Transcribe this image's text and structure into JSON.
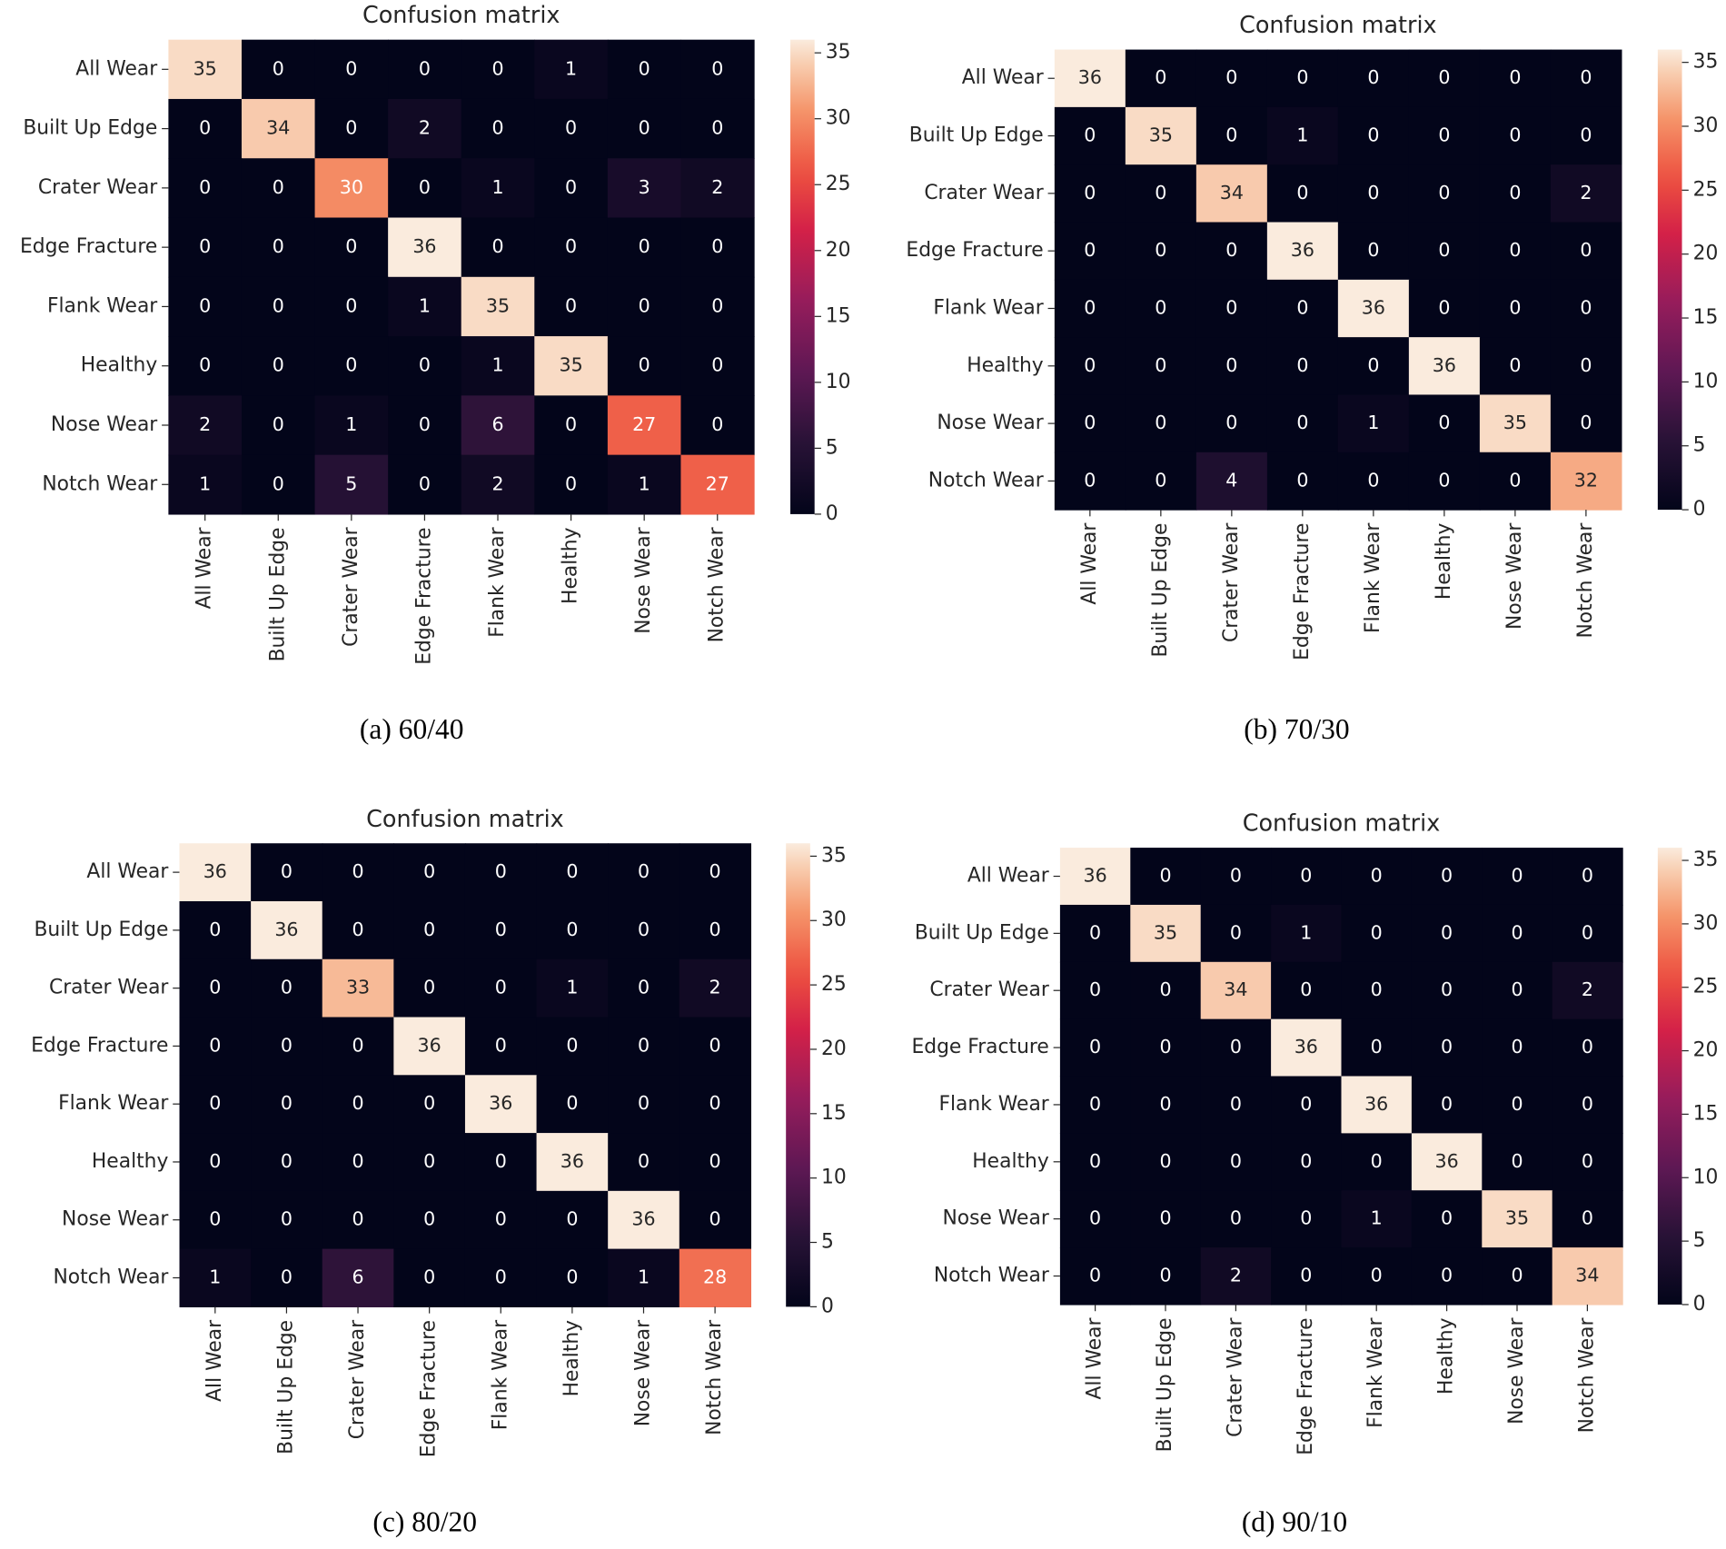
{
  "chart_data": [
    {
      "type": "heatmap",
      "title": "Confusion matrix",
      "caption": "(a) 60/40",
      "colormap": "rocket",
      "rows": [
        "All Wear",
        "Built Up Edge",
        "Crater Wear",
        "Edge Fracture",
        "Flank Wear",
        "Healthy",
        "Nose Wear",
        "Notch Wear"
      ],
      "columns": [
        "All Wear",
        "Built Up Edge",
        "Crater Wear",
        "Edge Fracture",
        "Flank Wear",
        "Healthy",
        "Nose Wear",
        "Notch Wear"
      ],
      "values": [
        [
          35,
          0,
          0,
          0,
          0,
          1,
          0,
          0
        ],
        [
          0,
          34,
          0,
          2,
          0,
          0,
          0,
          0
        ],
        [
          0,
          0,
          30,
          0,
          1,
          0,
          3,
          2
        ],
        [
          0,
          0,
          0,
          36,
          0,
          0,
          0,
          0
        ],
        [
          0,
          0,
          0,
          1,
          35,
          0,
          0,
          0
        ],
        [
          0,
          0,
          0,
          0,
          1,
          35,
          0,
          0
        ],
        [
          2,
          0,
          1,
          0,
          6,
          0,
          27,
          0
        ],
        [
          1,
          0,
          5,
          0,
          2,
          0,
          1,
          27
        ]
      ],
      "zlim": [
        0,
        36
      ],
      "zticks": [
        0,
        5,
        10,
        15,
        20,
        25,
        30,
        35
      ]
    },
    {
      "type": "heatmap",
      "title": "Confusion matrix",
      "caption": "(b) 70/30",
      "colormap": "rocket",
      "rows": [
        "All Wear",
        "Built Up Edge",
        "Crater Wear",
        "Edge Fracture",
        "Flank Wear",
        "Healthy",
        "Nose Wear",
        "Notch Wear"
      ],
      "columns": [
        "All Wear",
        "Built Up Edge",
        "Crater Wear",
        "Edge Fracture",
        "Flank Wear",
        "Healthy",
        "Nose Wear",
        "Notch Wear"
      ],
      "values": [
        [
          36,
          0,
          0,
          0,
          0,
          0,
          0,
          0
        ],
        [
          0,
          35,
          0,
          1,
          0,
          0,
          0,
          0
        ],
        [
          0,
          0,
          34,
          0,
          0,
          0,
          0,
          2
        ],
        [
          0,
          0,
          0,
          36,
          0,
          0,
          0,
          0
        ],
        [
          0,
          0,
          0,
          0,
          36,
          0,
          0,
          0
        ],
        [
          0,
          0,
          0,
          0,
          0,
          36,
          0,
          0
        ],
        [
          0,
          0,
          0,
          0,
          1,
          0,
          35,
          0
        ],
        [
          0,
          0,
          4,
          0,
          0,
          0,
          0,
          32
        ]
      ],
      "zlim": [
        0,
        36
      ],
      "zticks": [
        0,
        5,
        10,
        15,
        20,
        25,
        30,
        35
      ]
    },
    {
      "type": "heatmap",
      "title": "Confusion matrix",
      "caption": "(c) 80/20",
      "colormap": "rocket",
      "rows": [
        "All Wear",
        "Built Up Edge",
        "Crater Wear",
        "Edge Fracture",
        "Flank Wear",
        "Healthy",
        "Nose Wear",
        "Notch Wear"
      ],
      "columns": [
        "All Wear",
        "Built Up Edge",
        "Crater Wear",
        "Edge Fracture",
        "Flank Wear",
        "Healthy",
        "Nose Wear",
        "Notch Wear"
      ],
      "values": [
        [
          36,
          0,
          0,
          0,
          0,
          0,
          0,
          0
        ],
        [
          0,
          36,
          0,
          0,
          0,
          0,
          0,
          0
        ],
        [
          0,
          0,
          33,
          0,
          0,
          1,
          0,
          2
        ],
        [
          0,
          0,
          0,
          36,
          0,
          0,
          0,
          0
        ],
        [
          0,
          0,
          0,
          0,
          36,
          0,
          0,
          0
        ],
        [
          0,
          0,
          0,
          0,
          0,
          36,
          0,
          0
        ],
        [
          0,
          0,
          0,
          0,
          0,
          0,
          36,
          0
        ],
        [
          1,
          0,
          6,
          0,
          0,
          0,
          1,
          28
        ]
      ],
      "zlim": [
        0,
        36
      ],
      "zticks": [
        0,
        5,
        10,
        15,
        20,
        25,
        30,
        35
      ]
    },
    {
      "type": "heatmap",
      "title": "Confusion matrix",
      "caption": "(d) 90/10",
      "colormap": "rocket",
      "rows": [
        "All Wear",
        "Built Up Edge",
        "Crater Wear",
        "Edge Fracture",
        "Flank Wear",
        "Healthy",
        "Nose Wear",
        "Notch Wear"
      ],
      "columns": [
        "All Wear",
        "Built Up Edge",
        "Crater Wear",
        "Edge Fracture",
        "Flank Wear",
        "Healthy",
        "Nose Wear",
        "Notch Wear"
      ],
      "values": [
        [
          36,
          0,
          0,
          0,
          0,
          0,
          0,
          0
        ],
        [
          0,
          35,
          0,
          1,
          0,
          0,
          0,
          0
        ],
        [
          0,
          0,
          34,
          0,
          0,
          0,
          0,
          2
        ],
        [
          0,
          0,
          0,
          36,
          0,
          0,
          0,
          0
        ],
        [
          0,
          0,
          0,
          0,
          36,
          0,
          0,
          0
        ],
        [
          0,
          0,
          0,
          0,
          0,
          36,
          0,
          0
        ],
        [
          0,
          0,
          0,
          0,
          1,
          0,
          35,
          0
        ],
        [
          0,
          0,
          2,
          0,
          0,
          0,
          0,
          34
        ]
      ],
      "zlim": [
        0,
        36
      ],
      "zticks": [
        0,
        5,
        10,
        15,
        20,
        25,
        30,
        35
      ]
    }
  ]
}
